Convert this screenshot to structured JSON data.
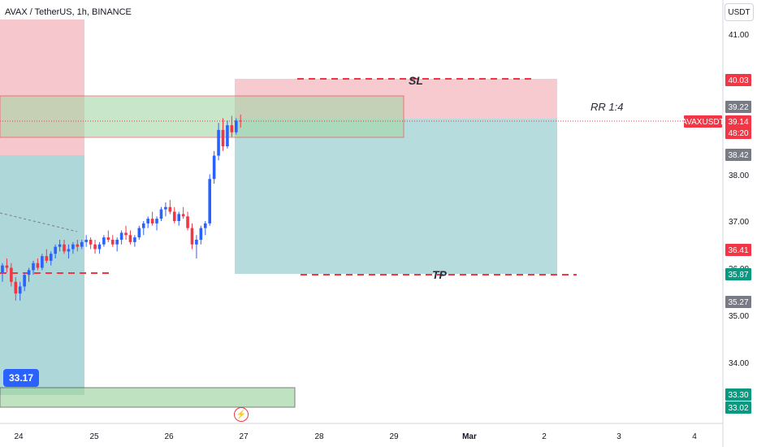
{
  "header": {
    "title": "AVAX / TetherUS, 1h, BINANCE",
    "unit": "USDT"
  },
  "annotations": {
    "sl": "SL",
    "tp": "TP",
    "rr": "RR 1:4",
    "bubble": "33.17"
  },
  "colors": {
    "up": "#2962ff",
    "down": "#f23645",
    "stop_zone": "#f2a9b0",
    "target_zone": "#9fd0d1",
    "green_zone": "#a5d6a7"
  },
  "axis": {
    "y_ticks": [
      "41.00",
      "38.00",
      "37.00",
      "36.00",
      "35.00",
      "34.00"
    ],
    "x_ticks": [
      "24",
      "25",
      "26",
      "27",
      "28",
      "29",
      "Mar",
      "2",
      "3",
      "4"
    ]
  },
  "price_labels": [
    {
      "text": "40.03",
      "kind": "red"
    },
    {
      "text": "39.22",
      "kind": "gray"
    },
    {
      "text": "AVAXUSDT",
      "kind": "symbol"
    },
    {
      "text": "39.14",
      "kind": "red"
    },
    {
      "text": "48:20",
      "kind": "red"
    },
    {
      "text": "38.42",
      "kind": "gray"
    },
    {
      "text": "36.41",
      "kind": "red"
    },
    {
      "text": "35.87",
      "kind": "green"
    },
    {
      "text": "35.27",
      "kind": "gray"
    },
    {
      "text": "33.30",
      "kind": "green"
    },
    {
      "text": "33.02",
      "kind": "green"
    }
  ],
  "chart_data": {
    "type": "candlestick",
    "series": [
      {
        "candles": [
          [
            35.9,
            36.1,
            35.7,
            36.05
          ],
          [
            36.05,
            36.2,
            35.9,
            36.0
          ],
          [
            36.0,
            36.1,
            35.6,
            35.7
          ],
          [
            35.7,
            35.8,
            35.3,
            35.45
          ],
          [
            35.45,
            35.7,
            35.3,
            35.6
          ],
          [
            35.6,
            35.9,
            35.5,
            35.85
          ],
          [
            35.85,
            36.0,
            35.7,
            35.95
          ],
          [
            35.95,
            36.15,
            35.85,
            36.1
          ],
          [
            36.1,
            36.2,
            35.95,
            36.0
          ],
          [
            36.0,
            36.3,
            35.95,
            36.25
          ],
          [
            36.25,
            36.4,
            36.1,
            36.15
          ],
          [
            36.15,
            36.35,
            36.05,
            36.3
          ],
          [
            36.3,
            36.5,
            36.2,
            36.45
          ],
          [
            36.45,
            36.6,
            36.35,
            36.5
          ],
          [
            36.5,
            36.6,
            36.3,
            36.35
          ],
          [
            36.35,
            36.5,
            36.2,
            36.4
          ],
          [
            36.4,
            36.55,
            36.3,
            36.5
          ],
          [
            36.5,
            36.6,
            36.35,
            36.45
          ],
          [
            36.45,
            36.6,
            36.4,
            36.55
          ],
          [
            36.55,
            36.7,
            36.45,
            36.6
          ],
          [
            36.6,
            36.65,
            36.4,
            36.5
          ],
          [
            36.5,
            36.6,
            36.3,
            36.4
          ],
          [
            36.4,
            36.55,
            36.3,
            36.5
          ],
          [
            36.5,
            36.7,
            36.45,
            36.65
          ],
          [
            36.65,
            36.8,
            36.55,
            36.6
          ],
          [
            36.6,
            36.7,
            36.45,
            36.5
          ],
          [
            36.5,
            36.65,
            36.35,
            36.6
          ],
          [
            36.6,
            36.8,
            36.5,
            36.75
          ],
          [
            36.75,
            36.9,
            36.6,
            36.7
          ],
          [
            36.7,
            36.8,
            36.5,
            36.55
          ],
          [
            36.55,
            36.7,
            36.45,
            36.65
          ],
          [
            36.65,
            36.9,
            36.6,
            36.85
          ],
          [
            36.85,
            37.0,
            36.7,
            36.95
          ],
          [
            36.95,
            37.1,
            36.85,
            37.05
          ],
          [
            37.05,
            37.2,
            36.9,
            36.95
          ],
          [
            36.95,
            37.1,
            36.8,
            37.05
          ],
          [
            37.05,
            37.3,
            37.0,
            37.25
          ],
          [
            37.25,
            37.4,
            37.1,
            37.3
          ],
          [
            37.3,
            37.45,
            37.15,
            37.2
          ],
          [
            37.2,
            37.3,
            36.95,
            37.0
          ],
          [
            37.0,
            37.2,
            36.9,
            37.15
          ],
          [
            37.15,
            37.3,
            37.05,
            37.1
          ],
          [
            37.1,
            37.2,
            36.8,
            36.85
          ],
          [
            36.85,
            36.95,
            36.4,
            36.5
          ],
          [
            36.5,
            36.7,
            36.2,
            36.6
          ],
          [
            36.6,
            36.9,
            36.5,
            36.85
          ],
          [
            36.85,
            37.0,
            36.7,
            36.95
          ],
          [
            36.95,
            38.0,
            36.9,
            37.9
          ],
          [
            37.9,
            38.5,
            37.8,
            38.4
          ],
          [
            38.4,
            39.1,
            38.3,
            38.95
          ],
          [
            38.95,
            39.2,
            38.5,
            38.6
          ],
          [
            38.6,
            39.15,
            38.55,
            39.05
          ],
          [
            39.05,
            39.25,
            38.8,
            38.9
          ],
          [
            38.9,
            39.2,
            38.85,
            39.15
          ],
          [
            39.15,
            39.28,
            39.0,
            39.14
          ]
        ]
      }
    ]
  }
}
